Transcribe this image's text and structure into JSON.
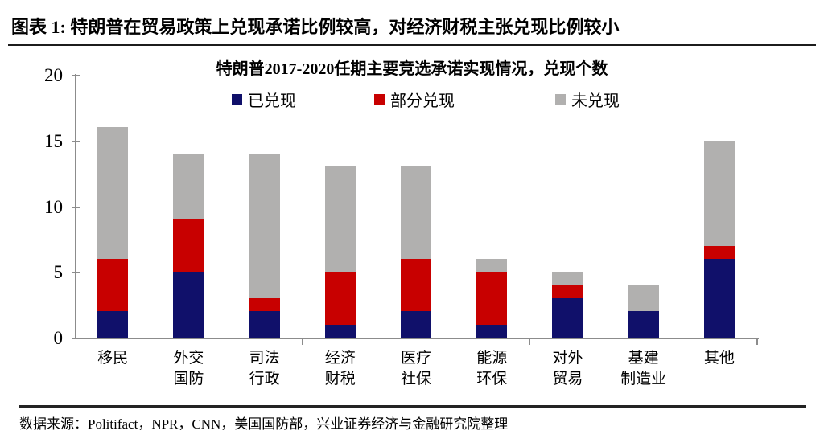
{
  "header": {
    "title": "图表 1: 特朗普在贸易政策上兑现承诺比例较高，对经济财税主张兑现比例较小"
  },
  "chart_data": {
    "type": "bar",
    "stacked": true,
    "title": "特朗普2017-2020任期主要竞选承诺实现情况，兑现个数",
    "categories": [
      [
        "移民"
      ],
      [
        "外交",
        "国防"
      ],
      [
        "司法",
        "行政"
      ],
      [
        "经济",
        "财税"
      ],
      [
        "医疗",
        "社保"
      ],
      [
        "能源",
        "环保"
      ],
      [
        "对外",
        "贸易"
      ],
      [
        "基建",
        "制造业"
      ],
      [
        "其他"
      ]
    ],
    "series": [
      {
        "name": "已兑现",
        "color": "#10106a",
        "values": [
          2,
          5,
          2,
          1,
          2,
          1,
          3,
          2,
          6
        ]
      },
      {
        "name": "部分兑现",
        "color": "#c80000",
        "values": [
          4,
          4,
          1,
          4,
          4,
          4,
          1,
          0,
          1
        ]
      },
      {
        "name": "未兑现",
        "color": "#b1b0af",
        "values": [
          10,
          5,
          11,
          8,
          7,
          1,
          1,
          2,
          8
        ]
      }
    ],
    "totals": [
      16,
      14,
      14,
      13,
      13,
      6,
      5,
      4,
      15
    ],
    "ylim": [
      0,
      20
    ],
    "yticks": [
      0,
      5,
      10,
      15,
      20
    ],
    "xlabel": "",
    "ylabel": "",
    "grid": false,
    "legend_position": "top",
    "axis_color": "#8c8c8c"
  },
  "footer": {
    "source": "数据来源：Politifact，NPR，CNN，美国国防部，兴业证券经济与金融研究院整理"
  }
}
